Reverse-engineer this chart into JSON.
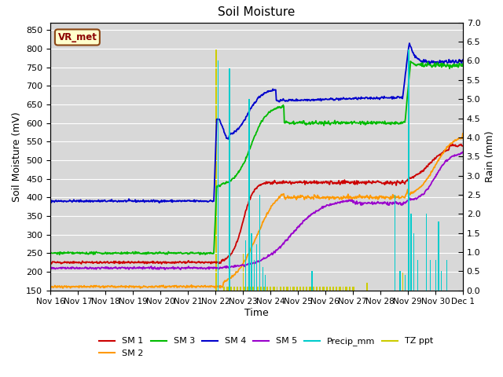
{
  "title": "Soil Moisture",
  "ylabel_left": "Soil Moisture (mV)",
  "ylabel_right": "Rain (mm)",
  "xlabel": "Time",
  "ylim_left": [
    150,
    870
  ],
  "ylim_right": [
    0.0,
    7.0
  ],
  "yticks_left": [
    150,
    200,
    250,
    300,
    350,
    400,
    450,
    500,
    550,
    600,
    650,
    700,
    750,
    800,
    850
  ],
  "yticks_right": [
    0.0,
    0.5,
    1.0,
    1.5,
    2.0,
    2.5,
    3.0,
    3.5,
    4.0,
    4.5,
    5.0,
    5.5,
    6.0,
    6.5,
    7.0
  ],
  "background_color": "#d8d8d8",
  "vr_met_label": "VR_met",
  "vr_met_bg": "#ffffcc",
  "vr_met_border": "#8B4513",
  "vr_met_text": "#8B0000",
  "sm1_color": "#cc0000",
  "sm2_color": "#ff9900",
  "sm3_color": "#00bb00",
  "sm4_color": "#0000cc",
  "sm5_color": "#9900cc",
  "precip_color": "#00cccc",
  "tzppt_color": "#cccc00",
  "x_tick_labels": [
    "Nov 16",
    "Nov 17",
    "Nov 18",
    "Nov 19",
    "Nov 20",
    "Nov 21",
    "Nov 22",
    "Nov 23",
    "Nov 24",
    "Nov 25",
    "Nov 26",
    "Nov 27",
    "Nov 28",
    "Nov 29",
    "Nov 30",
    "Dec 1"
  ]
}
